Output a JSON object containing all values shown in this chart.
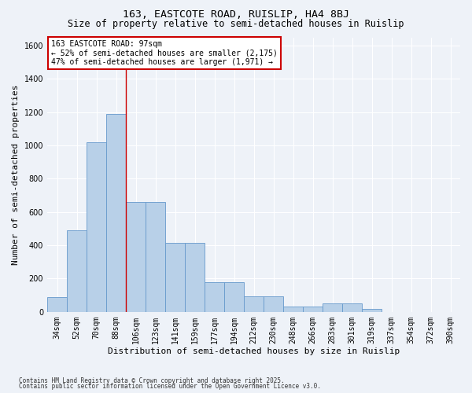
{
  "title": "163, EASTCOTE ROAD, RUISLIP, HA4 8BJ",
  "subtitle": "Size of property relative to semi-detached houses in Ruislip",
  "xlabel": "Distribution of semi-detached houses by size in Ruislip",
  "ylabel": "Number of semi-detached properties",
  "categories": [
    "34sqm",
    "52sqm",
    "70sqm",
    "88sqm",
    "106sqm",
    "123sqm",
    "141sqm",
    "159sqm",
    "177sqm",
    "194sqm",
    "212sqm",
    "230sqm",
    "248sqm",
    "266sqm",
    "283sqm",
    "301sqm",
    "319sqm",
    "337sqm",
    "354sqm",
    "372sqm",
    "390sqm"
  ],
  "values": [
    90,
    490,
    1020,
    1190,
    660,
    660,
    415,
    415,
    180,
    180,
    95,
    95,
    30,
    30,
    50,
    50,
    20,
    0,
    0,
    0,
    0
  ],
  "bar_color": "#b8d0e8",
  "bar_edge_color": "#6699cc",
  "vline_x": 3.5,
  "vline_color": "#cc0000",
  "annotation_title": "163 EASTCOTE ROAD: 97sqm",
  "annotation_line1": "← 52% of semi-detached houses are smaller (2,175)",
  "annotation_line2": "47% of semi-detached houses are larger (1,971) →",
  "annotation_box_color": "white",
  "annotation_box_edge": "#cc0000",
  "ylim": [
    0,
    1650
  ],
  "yticks": [
    0,
    200,
    400,
    600,
    800,
    1000,
    1200,
    1400,
    1600
  ],
  "footnote1": "Contains HM Land Registry data © Crown copyright and database right 2025.",
  "footnote2": "Contains public sector information licensed under the Open Government Licence v3.0.",
  "bg_color": "#eef2f8",
  "plot_bg_color": "#eef2f8",
  "grid_color": "#ffffff",
  "title_fontsize": 9.5,
  "subtitle_fontsize": 8.5,
  "axis_label_fontsize": 8,
  "tick_fontsize": 7,
  "footnote_fontsize": 5.5,
  "annotation_fontsize": 7
}
